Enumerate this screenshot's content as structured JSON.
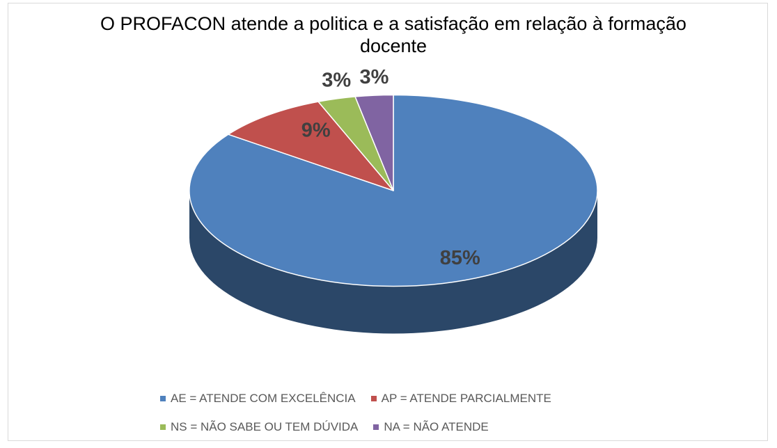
{
  "chart_data": {
    "type": "pie3d",
    "title": "O PROFACON atende a politica e a  satisfação em relação à formação docente",
    "categories": [
      "AE = ATENDE COM EXCELÊNCIA",
      "AP = ATENDE PARCIALMENTE",
      "NS = NÃO SABE OU TEM DÚVIDA",
      "NA = NÃO ATENDE"
    ],
    "values": [
      85,
      9,
      3,
      3
    ],
    "value_labels": [
      "85%",
      "9%",
      "3%",
      "3%"
    ],
    "colors": [
      "#4f81bd",
      "#c0504d",
      "#9bbb59",
      "#8064a2"
    ]
  }
}
